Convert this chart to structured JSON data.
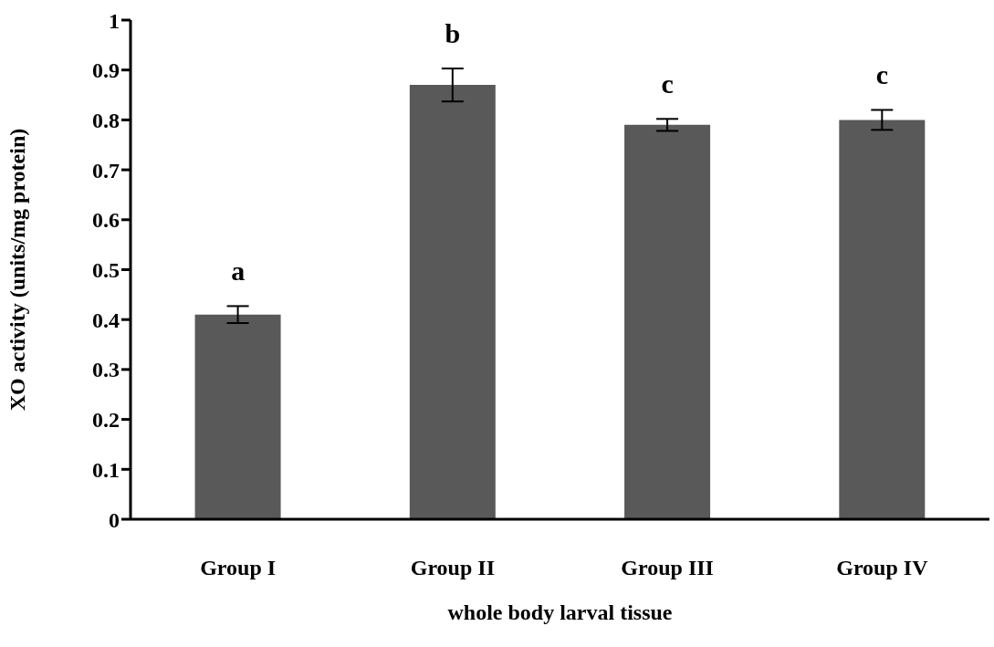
{
  "chart_data": {
    "type": "bar",
    "xlabel": "whole body larval tissue",
    "ylabel": "XO activity (units/mg protein)",
    "categories": [
      "Group I",
      "Group II",
      "Group III",
      "Group IV"
    ],
    "values": [
      0.41,
      0.87,
      0.79,
      0.8
    ],
    "errors": [
      0.017,
      0.033,
      0.012,
      0.02
    ],
    "color": "#595959",
    "ylim": [
      0,
      1
    ],
    "yticks": [
      0,
      0.1,
      0.2,
      0.3,
      0.4,
      0.5,
      0.6,
      0.7,
      0.8,
      0.9,
      1
    ],
    "grid": false,
    "legend": false,
    "annotations": [
      "a",
      "b",
      "c",
      "c"
    ]
  }
}
